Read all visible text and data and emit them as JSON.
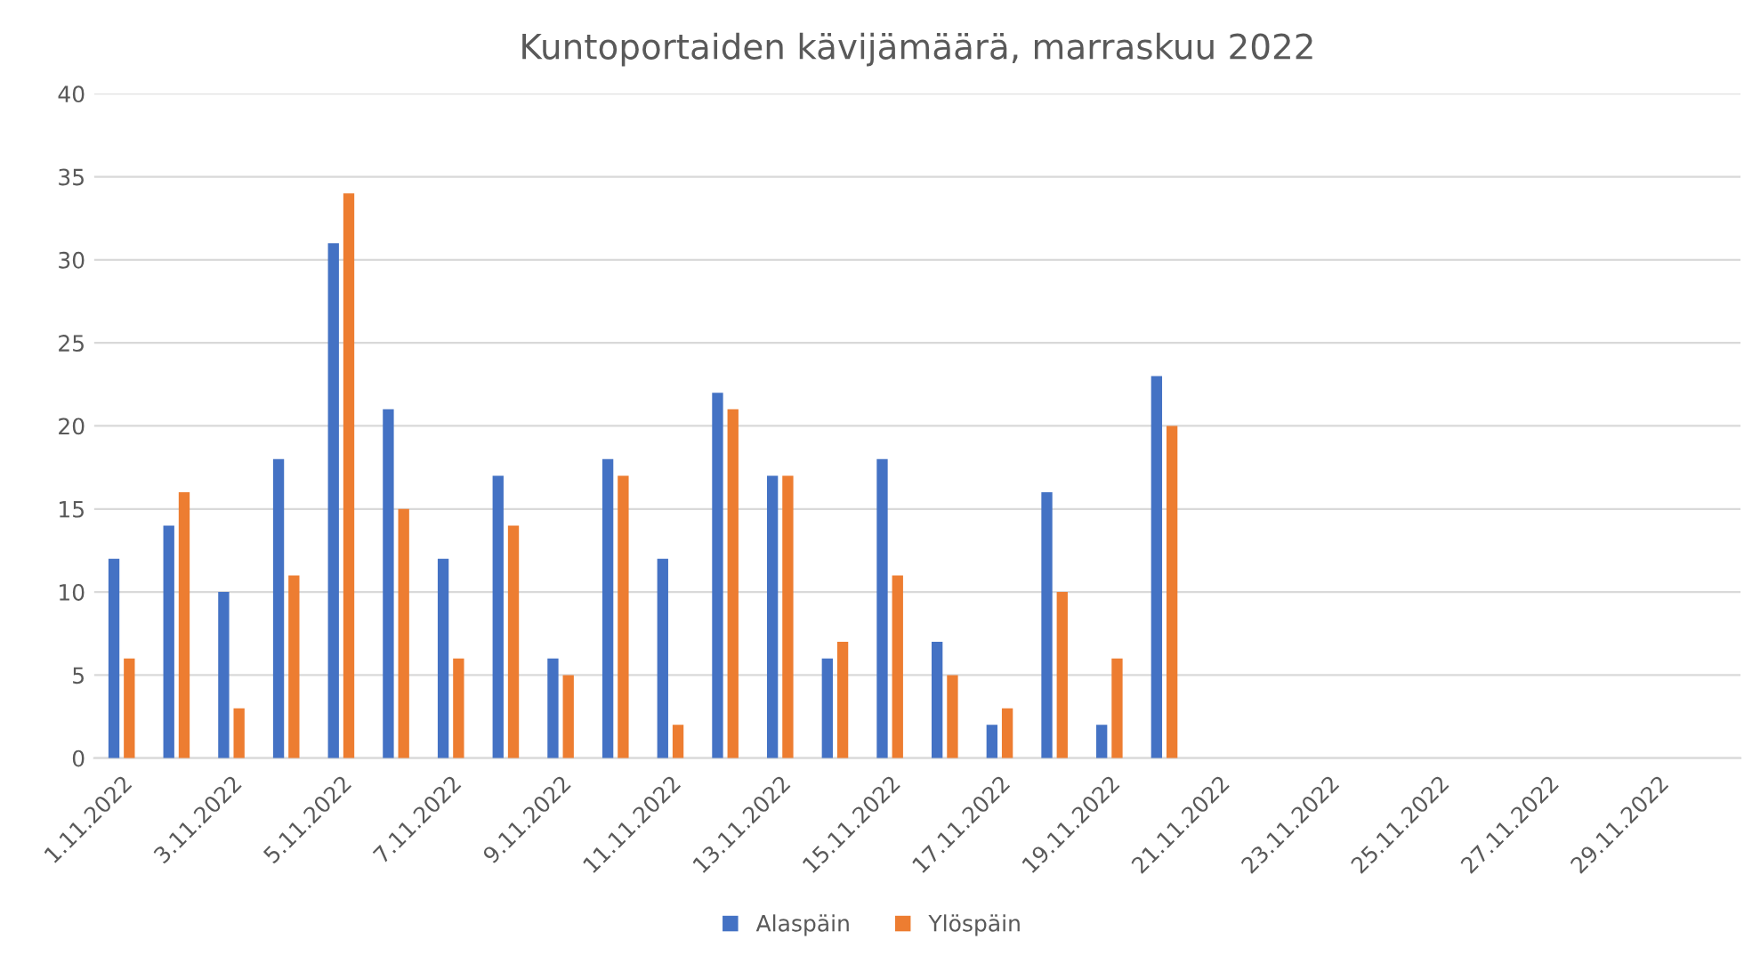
{
  "chart_data": {
    "type": "bar",
    "title": "Kuntoportaiden kävijämäärä, marraskuu 2022",
    "categories": [
      "1.11.2022",
      null,
      "3.11.2022",
      null,
      "5.11.2022",
      null,
      "7.11.2022",
      null,
      "9.11.2022",
      null,
      "11.11.2022",
      null,
      "13.11.2022",
      null,
      "15.11.2022",
      null,
      "17.11.2022",
      null,
      "19.11.2022",
      null,
      "21.11.2022",
      null,
      "23.11.2022",
      null,
      "25.11.2022",
      null,
      "27.11.2022",
      null,
      "29.11.2022",
      null
    ],
    "series": [
      {
        "name": "Alaspäin",
        "color": "#4472c4",
        "values": [
          12,
          14,
          10,
          18,
          31,
          21,
          12,
          17,
          6,
          18,
          12,
          22,
          17,
          6,
          18,
          7,
          2,
          16,
          2,
          23,
          null,
          null,
          null,
          null,
          null,
          null,
          null,
          null,
          null,
          null
        ]
      },
      {
        "name": "Ylöspäin",
        "color": "#ed7d31",
        "values": [
          6,
          16,
          3,
          11,
          34,
          15,
          6,
          14,
          5,
          17,
          2,
          21,
          17,
          7,
          11,
          5,
          3,
          10,
          6,
          20,
          null,
          null,
          null,
          null,
          null,
          null,
          null,
          null,
          null,
          null
        ]
      }
    ],
    "ylim": [
      0,
      40
    ],
    "yticks": [
      0,
      5,
      10,
      15,
      20,
      25,
      30,
      35,
      40
    ],
    "grid": "y",
    "legend": "bottom"
  }
}
